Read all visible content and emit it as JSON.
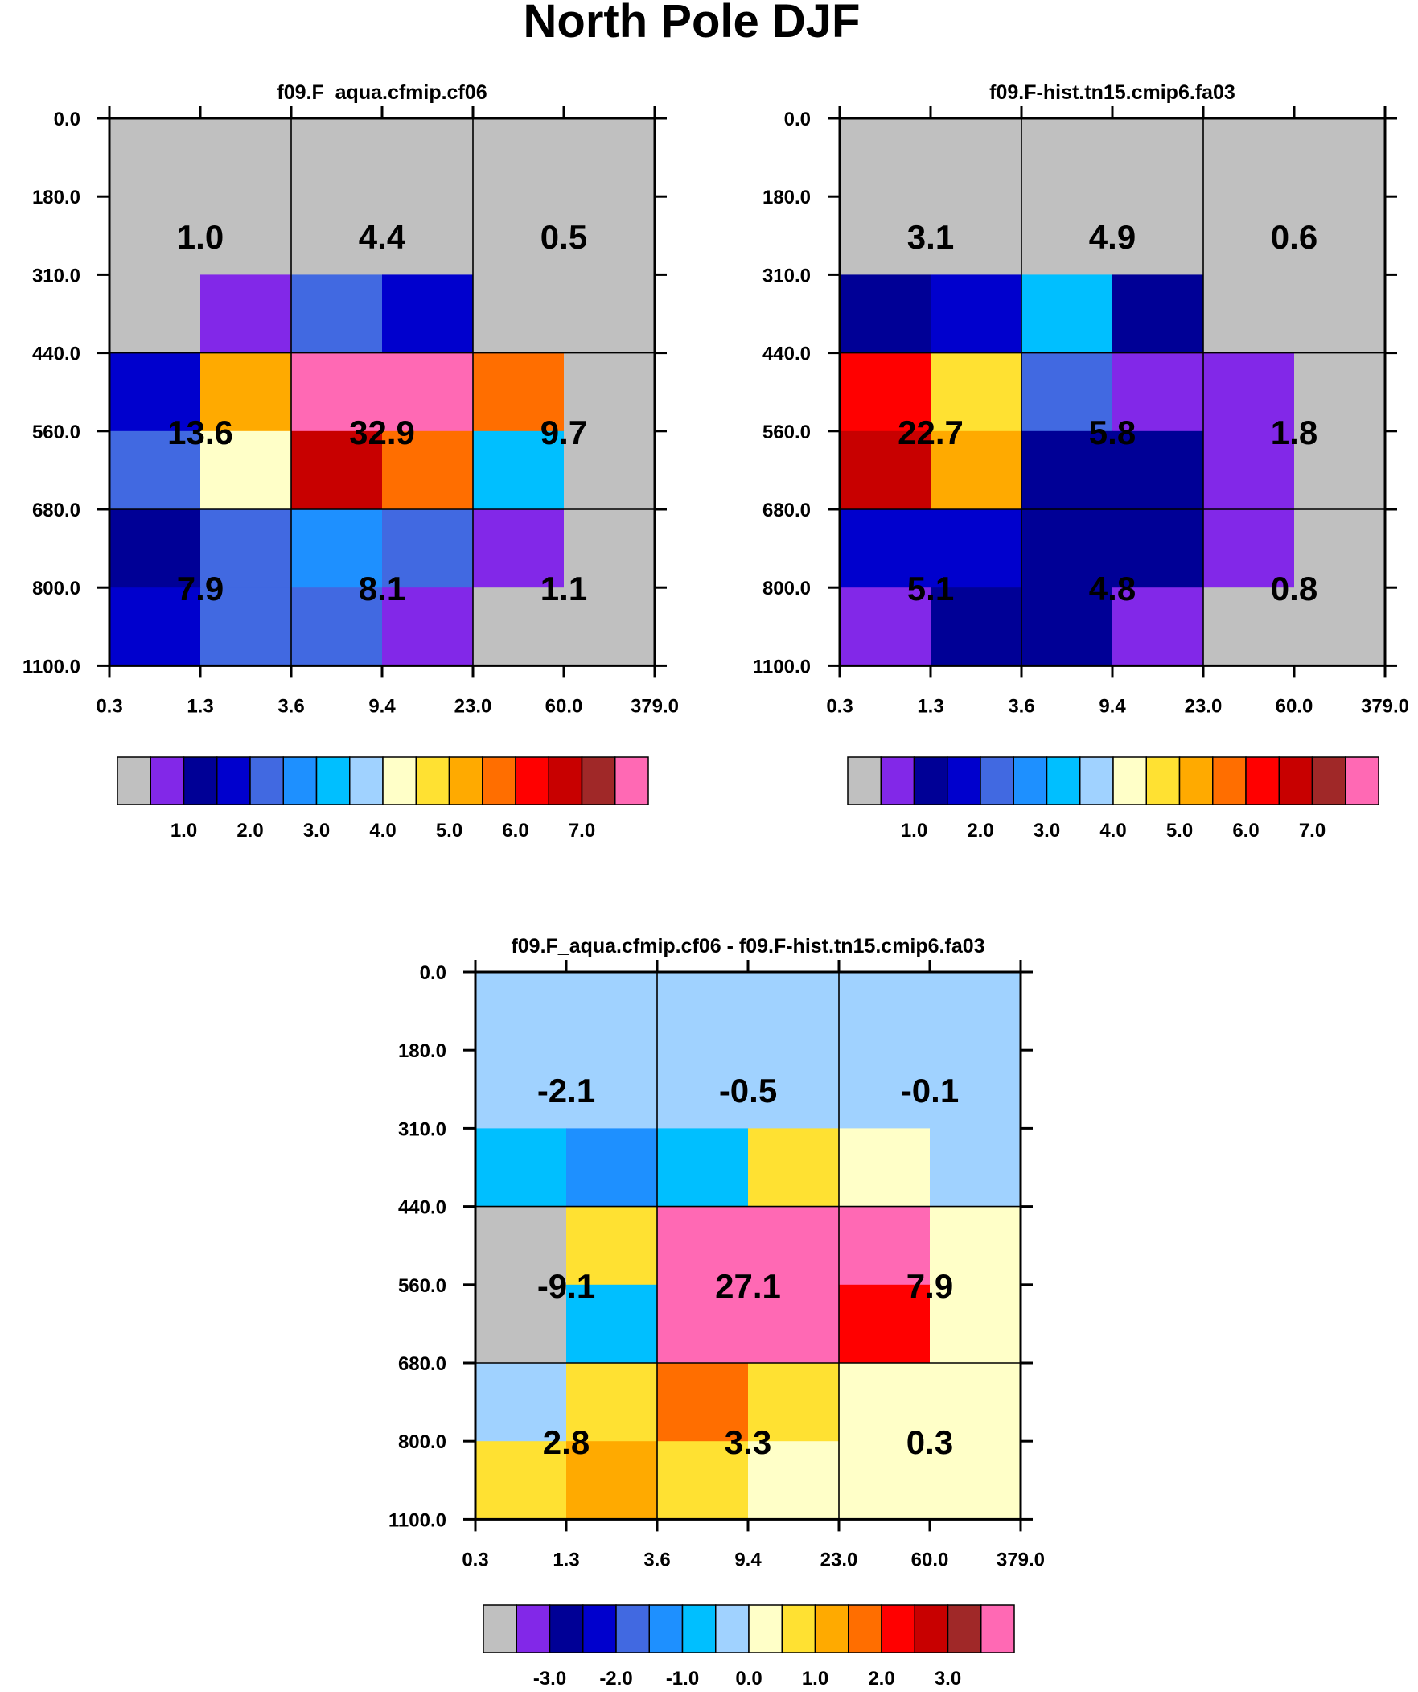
{
  "figure_title": "North Pole DJF",
  "palette": [
    "#c0c0c0",
    "#8228e8",
    "#000096",
    "#0000cd",
    "#4169e1",
    "#1e90ff",
    "#00bfff",
    "#a0d2ff",
    "#ffffc8",
    "#ffe132",
    "#ffaa00",
    "#ff6e00",
    "#ff0000",
    "#c80000",
    "#a02828",
    "#ff69b4"
  ],
  "chart_data": [
    {
      "type": "heatmap",
      "title": "f09.F_aqua.cfmip.cf06",
      "x_tick_labels": [
        "0.3",
        "1.3",
        "3.6",
        "9.4",
        "23.0",
        "60.0",
        "379.0"
      ],
      "y_tick_labels": [
        "0.0",
        "180.0",
        "310.0",
        "440.0",
        "560.0",
        "680.0",
        "800.0",
        "1100.0"
      ],
      "cell_color_index": [
        [
          0,
          0,
          0,
          0,
          0,
          0
        ],
        [
          0,
          0,
          0,
          0,
          0,
          0
        ],
        [
          0,
          1,
          4,
          3,
          0,
          0
        ],
        [
          3,
          10,
          15,
          15,
          11,
          0
        ],
        [
          4,
          8,
          13,
          11,
          6,
          0
        ],
        [
          2,
          4,
          5,
          4,
          1,
          0
        ],
        [
          3,
          4,
          4,
          1,
          0,
          0
        ]
      ],
      "region_values": [
        [
          "1.0",
          "4.4",
          "0.5"
        ],
        [
          "13.6",
          "32.9",
          "9.7"
        ],
        [
          "7.9",
          "8.1",
          "1.1"
        ]
      ],
      "colorbar_labels": [
        "1.0",
        "2.0",
        "3.0",
        "4.0",
        "5.0",
        "6.0",
        "7.0"
      ]
    },
    {
      "type": "heatmap",
      "title": "f09.F-hist.tn15.cmip6.fa03",
      "x_tick_labels": [
        "0.3",
        "1.3",
        "3.6",
        "9.4",
        "23.0",
        "60.0",
        "379.0"
      ],
      "y_tick_labels": [
        "0.0",
        "180.0",
        "310.0",
        "440.0",
        "560.0",
        "680.0",
        "800.0",
        "1100.0"
      ],
      "cell_color_index": [
        [
          0,
          0,
          0,
          0,
          0,
          0
        ],
        [
          0,
          0,
          0,
          0,
          0,
          0
        ],
        [
          2,
          3,
          6,
          2,
          0,
          0
        ],
        [
          12,
          9,
          4,
          1,
          1,
          0
        ],
        [
          13,
          10,
          2,
          2,
          1,
          0
        ],
        [
          3,
          3,
          2,
          2,
          1,
          0
        ],
        [
          1,
          2,
          2,
          1,
          0,
          0
        ]
      ],
      "region_values": [
        [
          "3.1",
          "4.9",
          "0.6"
        ],
        [
          "22.7",
          "5.8",
          "1.8"
        ],
        [
          "5.1",
          "4.8",
          "0.8"
        ]
      ],
      "colorbar_labels": [
        "1.0",
        "2.0",
        "3.0",
        "4.0",
        "5.0",
        "6.0",
        "7.0"
      ]
    },
    {
      "type": "heatmap",
      "title": "f09.F_aqua.cfmip.cf06 - f09.F-hist.tn15.cmip6.fa03",
      "x_tick_labels": [
        "0.3",
        "1.3",
        "3.6",
        "9.4",
        "23.0",
        "60.0",
        "379.0"
      ],
      "y_tick_labels": [
        "0.0",
        "180.0",
        "310.0",
        "440.0",
        "560.0",
        "680.0",
        "800.0",
        "1100.0"
      ],
      "cell_color_index": [
        [
          7,
          7,
          7,
          7,
          7,
          7
        ],
        [
          7,
          7,
          7,
          7,
          7,
          7
        ],
        [
          6,
          5,
          6,
          9,
          8,
          7
        ],
        [
          0,
          9,
          15,
          15,
          15,
          8
        ],
        [
          0,
          6,
          15,
          15,
          12,
          8
        ],
        [
          7,
          9,
          11,
          9,
          8,
          8
        ],
        [
          9,
          10,
          9,
          8,
          8,
          8
        ]
      ],
      "region_values": [
        [
          "-2.1",
          "-0.5",
          "-0.1"
        ],
        [
          "-9.1",
          "27.1",
          "7.9"
        ],
        [
          "2.8",
          "3.3",
          "0.3"
        ]
      ],
      "colorbar_labels": [
        "-3.0",
        "-2.0",
        "-1.0",
        "0.0",
        "1.0",
        "2.0",
        "3.0"
      ]
    }
  ]
}
